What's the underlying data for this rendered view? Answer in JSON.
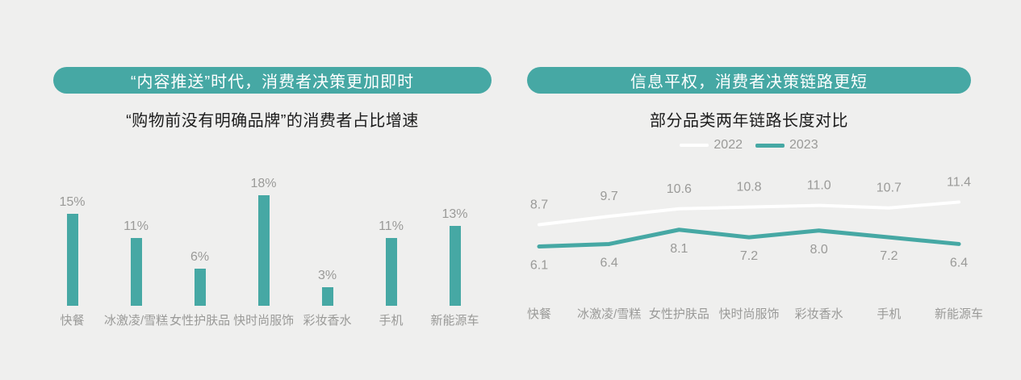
{
  "theme": {
    "background": "#efefee",
    "accent_teal": "#46a8a4",
    "label_gray": "#9a9a98",
    "text_dark": "#1c1c1c",
    "white": "#ffffff"
  },
  "left_panel": {
    "banner": "“内容推送”时代，消费者决策更加即时",
    "subtitle": "“购物前没有明确品牌”的消费者占比增速"
  },
  "right_panel": {
    "banner": "信息平权，消费者决策链路更短",
    "subtitle": "部分品类两年链路长度对比"
  },
  "chart_data": [
    {
      "type": "bar",
      "title": "“购物前没有明确品牌”的消费者占比增速",
      "categories": [
        "快餐",
        "冰激凌/雪糕",
        "女性护肤品",
        "快时尚服饰",
        "彩妆香水",
        "手机",
        "新能源车"
      ],
      "values": [
        15,
        11,
        6,
        18,
        3,
        11,
        13
      ],
      "labels": [
        "15%",
        "11%",
        "6%",
        "18%",
        "3%",
        "11%",
        "13%"
      ],
      "unit": "%",
      "bar_color": "#46a8a4",
      "ylim": [
        0,
        20
      ],
      "grid": false,
      "axes_visible": false
    },
    {
      "type": "line",
      "title": "部分品类两年链路长度对比",
      "categories": [
        "快餐",
        "冰激凌/雪糕",
        "女性护肤品",
        "快时尚服饰",
        "彩妆香水",
        "手机",
        "新能源车"
      ],
      "series": [
        {
          "name": "2022",
          "color": "#ffffff",
          "stroke_width": 4,
          "label_position": "above",
          "values": [
            8.7,
            9.7,
            10.6,
            10.8,
            11.0,
            10.7,
            11.4
          ],
          "labels": [
            "8.7",
            "9.7",
            "10.6",
            "10.8",
            "11.0",
            "10.7",
            "11.4"
          ]
        },
        {
          "name": "2023",
          "color": "#46a8a4",
          "stroke_width": 5,
          "label_position": "below",
          "values": [
            6.1,
            6.4,
            8.1,
            7.2,
            8.0,
            7.2,
            6.4
          ],
          "labels": [
            "6.1",
            "6.4",
            "8.1",
            "7.2",
            "8.0",
            "7.2",
            "6.4"
          ]
        }
      ],
      "legend_position": "top-center",
      "ylim": [
        0,
        13
      ],
      "grid": false,
      "axes_visible": false
    }
  ]
}
